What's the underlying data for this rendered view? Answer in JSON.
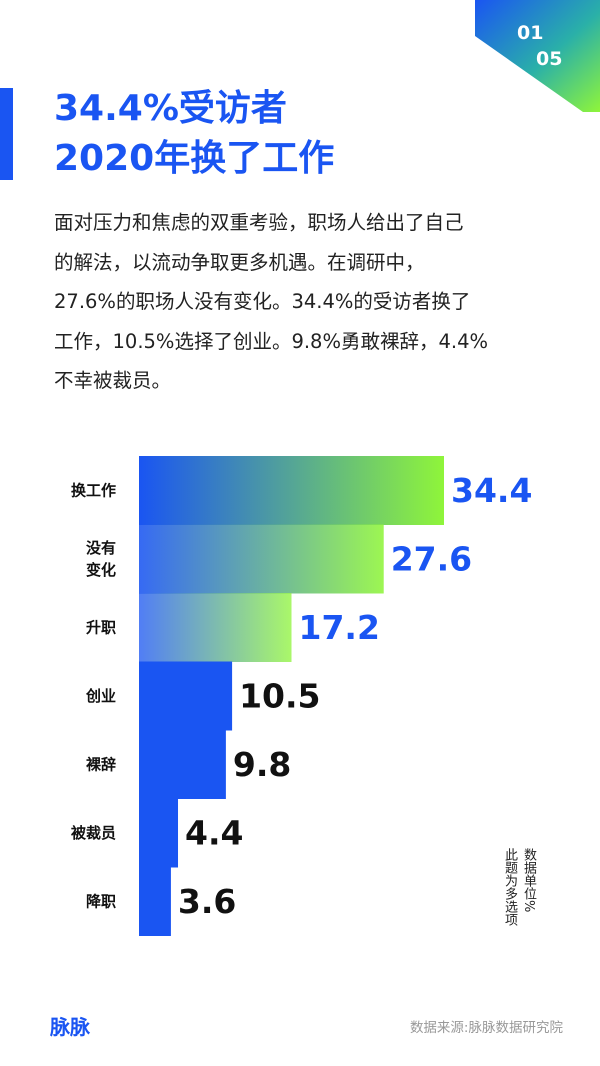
{
  "header": {
    "page_current": "01",
    "page_total": "05"
  },
  "title": {
    "line1": "34.4%受访者",
    "line2": "2020年换了工作"
  },
  "description": {
    "lines": [
      "面对压力和焦虑的双重考验，职场人给出了自己",
      "的解法，以流动争取更多机遇。在调研中，",
      "27.6%的职场人没有变化。34.4%的受访者换了",
      "工作，10.5%选择了创业。9.8%勇敢裸辞，4.4%",
      "不幸被裁员。"
    ]
  },
  "chart_data": {
    "type": "bar",
    "orientation": "horizontal",
    "categories": [
      [
        "换工作"
      ],
      [
        "没有",
        "变化"
      ],
      [
        "升职"
      ],
      [
        "创业"
      ],
      [
        "裸辞"
      ],
      [
        "被裁员"
      ],
      [
        "降职"
      ]
    ],
    "values": [
      34.4,
      27.6,
      17.2,
      10.5,
      9.8,
      4.4,
      3.6
    ],
    "value_labels": [
      "34.4",
      "27.6",
      "17.2",
      "10.5",
      "9.8",
      "4.4",
      "3.6"
    ],
    "xlim": [
      0,
      34.4
    ],
    "colors": {
      "bar_blue": "#1a55f2",
      "bar_green": "#8ff53a",
      "label_blue": "#1a55f2",
      "label_black": "#111111",
      "category_text": "#111111"
    }
  },
  "notes": {
    "unit": "数据单位%",
    "multi_choice": "此题为多选项"
  },
  "footer": {
    "logo": "脉脉",
    "source": "数据来源:脉脉数据研究院"
  }
}
